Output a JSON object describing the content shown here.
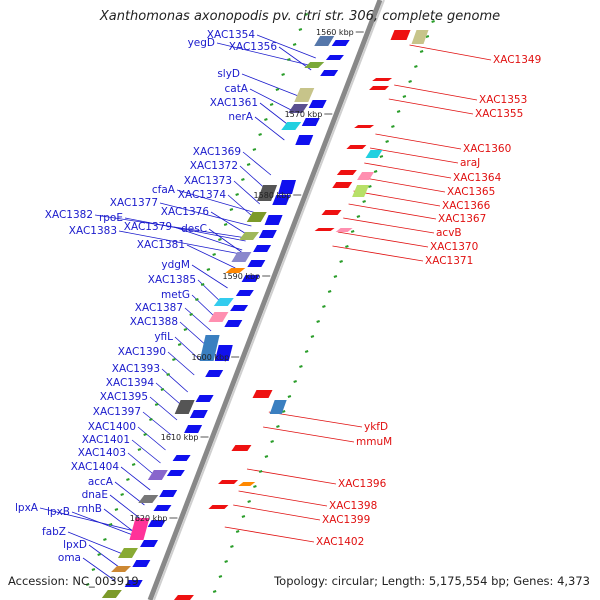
{
  "title": "Xanthomonas axonopodis pv. citri str. 306, complete genome",
  "accession": "Accession: NC_003919",
  "summary": "Topology: circular; Length: 5,175,554 bp; Genes: 4,373",
  "colors": {
    "left_label": "#1a1acc",
    "right_label": "#e01010",
    "backbone": "#888888",
    "orf": "#2a9d2a"
  },
  "ticks": [
    "1560 kbp",
    "1570 kbp",
    "1580 kbp",
    "1590 kbp",
    "1600 kbp",
    "1610 kbp",
    "1620 kbp"
  ],
  "left_labels": [
    "XAC1354",
    "yegD",
    "XAC1356",
    "slyD",
    "catA",
    "XAC1361",
    "nerA",
    "XAC1369",
    "XAC1372",
    "XAC1373",
    "cfaA",
    "XAC1374",
    "XAC1377",
    "XAC1382",
    "rpoE",
    "XAC1376",
    "XAC1379",
    "desC",
    "XAC1383",
    "XAC1381",
    "ydgM",
    "XAC1385",
    "metG",
    "XAC1387",
    "XAC1388",
    "yfiL",
    "XAC1390",
    "XAC1393",
    "XAC1394",
    "XAC1395",
    "XAC1397",
    "XAC1400",
    "XAC1401",
    "XAC1403",
    "XAC1404",
    "accA",
    "dnaE",
    "rnhB",
    "lpxA",
    "lpxB",
    "fabZ",
    "lpxD",
    "oma"
  ],
  "right_labels": [
    "XAC1349",
    "XAC1353",
    "XAC1355",
    "XAC1360",
    "araJ",
    "XAC1364",
    "XAC1365",
    "XAC1366",
    "XAC1367",
    "acvB",
    "XAC1370",
    "XAC1371",
    "ykfD",
    "mmuM",
    "XAC1396",
    "XAC1398",
    "XAC1399",
    "XAC1402"
  ]
}
